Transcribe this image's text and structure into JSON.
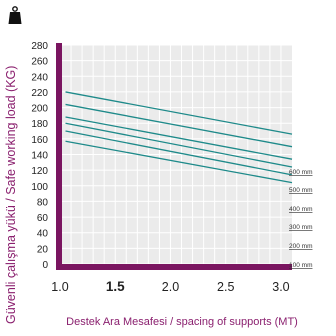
{
  "chart_data": {
    "type": "line",
    "xlabel": "Destek Ara Mesafesi / spacing of supports (MT)",
    "ylabel": "Güvenli çalışma yükü / Safe working load (KG)",
    "icon": "weight-icon",
    "x_ticks": [
      "1.0",
      "1.5",
      "2.0",
      "2.5",
      "3.0"
    ],
    "x_tick_values": [
      1.0,
      1.5,
      2.0,
      2.5,
      3.0
    ],
    "x_bold_tick": "1.5",
    "y_ticks": [
      "0",
      "20",
      "40",
      "60",
      "80",
      "100",
      "120",
      "140",
      "160",
      "180",
      "200",
      "220",
      "240",
      "260",
      "280"
    ],
    "xlim": [
      1.0,
      3.1
    ],
    "ylim": [
      0,
      280
    ],
    "grid": true,
    "colors": {
      "frame": "#7a1560",
      "line": "#1e8a8a",
      "plot_bg": "#ebebeb",
      "grid": "#ffffff",
      "axis_title": "#8a1f6e"
    },
    "series": [
      {
        "name": "600 mm",
        "x": [
          1.05,
          3.1
        ],
        "y": [
          220,
          166
        ]
      },
      {
        "name": "500 mm",
        "x": [
          1.05,
          3.1
        ],
        "y": [
          204,
          150
        ]
      },
      {
        "name": "400 mm",
        "x": [
          1.05,
          3.1
        ],
        "y": [
          188,
          134
        ]
      },
      {
        "name": "300 mm",
        "x": [
          1.05,
          3.1
        ],
        "y": [
          180,
          124
        ]
      },
      {
        "name": "200 mm",
        "x": [
          1.05,
          3.1
        ],
        "y": [
          170,
          114
        ]
      },
      {
        "name": "100 mm",
        "x": [
          1.05,
          3.1
        ],
        "y": [
          157,
          104
        ]
      }
    ]
  }
}
